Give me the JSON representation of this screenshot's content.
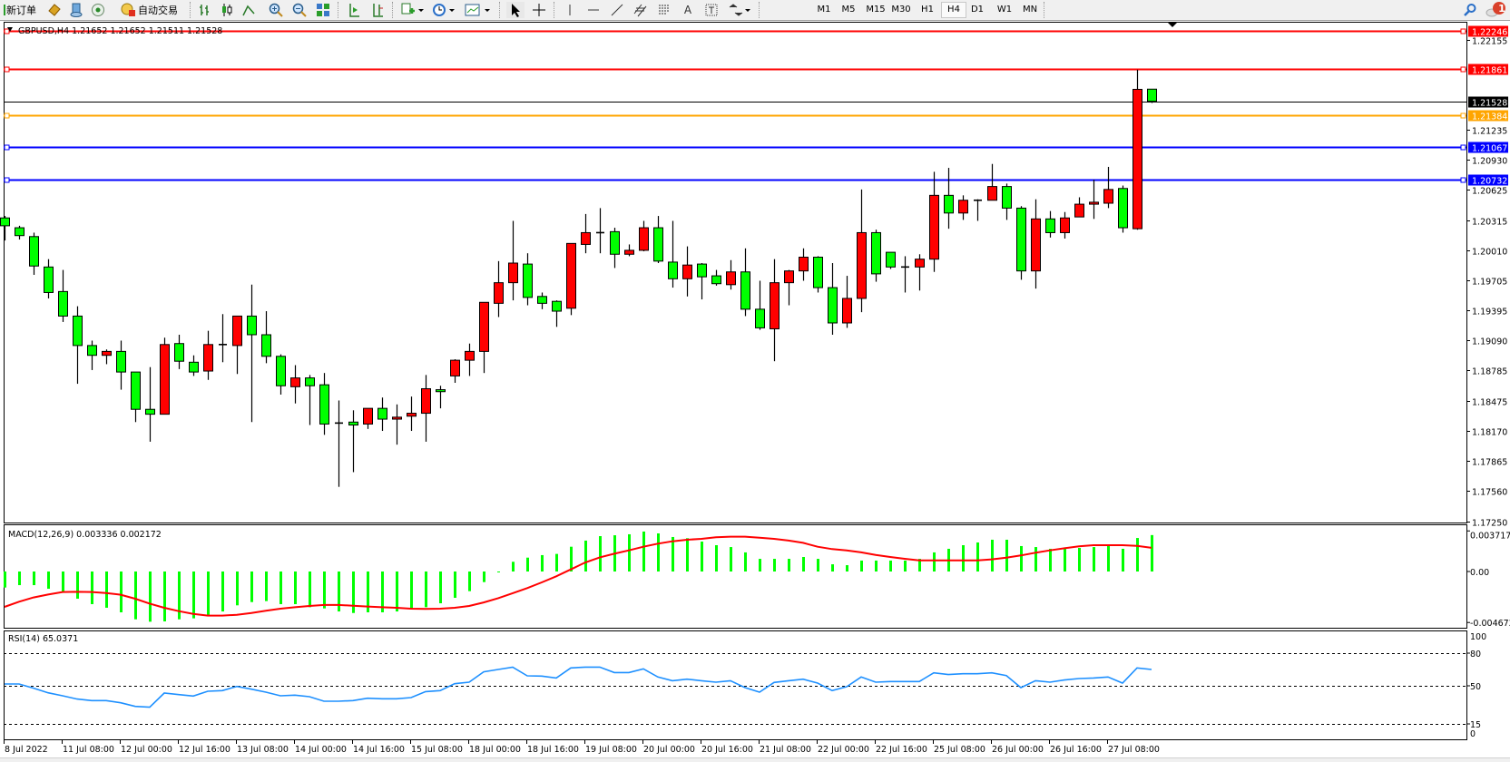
{
  "toolbar": {
    "new_order_label": "新订单",
    "auto_trading_label": "自动交易",
    "tools": [
      "gold-diamond-icon",
      "community-icon",
      "signals-icon",
      "bar-chart-icon",
      "candlestick-icon",
      "line-chart-icon",
      "zoom-in-icon",
      "zoom-out-icon",
      "tile-windows-icon",
      "auto-scroll-icon",
      "chart-shift-icon",
      "indicators-icon",
      "periods-icon",
      "templates-icon",
      "cursor-icon",
      "crosshair-icon",
      "vertical-line-icon",
      "horizontal-line-icon",
      "trendline-icon",
      "equidistant-channel-icon",
      "fibonacci-icon",
      "text-icon",
      "text-label-icon",
      "arrows-icon"
    ],
    "timeframes": [
      "M1",
      "M5",
      "M15",
      "M30",
      "H1",
      "H4",
      "D1",
      "W1",
      "MN"
    ],
    "active_timeframe": "H4",
    "notification_count": "1"
  },
  "chart": {
    "header": "GBPUSD,H4  1.21652 1.21652 1.21511 1.21528",
    "colors": {
      "bull": "#ff0000",
      "bear": "#00ff00",
      "outline": "#000000",
      "macd_hist": "#00ff00",
      "macd_signal": "#ff0000",
      "rsi": "#1e90ff"
    }
  },
  "chart_data": [
    {
      "type": "candlestick",
      "symbol": "GBPUSD",
      "timeframe": "H4",
      "ohlc_fields": [
        "open",
        "high",
        "low",
        "close"
      ],
      "candles": [
        [
          1.2034,
          1.2036,
          1.2011,
          1.2026
        ],
        [
          1.2024,
          1.2026,
          1.2012,
          1.2016
        ],
        [
          1.2015,
          1.2019,
          1.1976,
          1.1985
        ],
        [
          1.1984,
          1.1992,
          1.1952,
          1.1958
        ],
        [
          1.1959,
          1.1981,
          1.1928,
          1.1934
        ],
        [
          1.1934,
          1.1944,
          1.1865,
          1.1904
        ],
        [
          1.1904,
          1.1909,
          1.1879,
          1.1894
        ],
        [
          1.1894,
          1.19,
          1.1885,
          1.1898
        ],
        [
          1.1898,
          1.1909,
          1.1859,
          1.1877
        ],
        [
          1.1877,
          1.1877,
          1.1826,
          1.1839
        ],
        [
          1.1839,
          1.1882,
          1.1806,
          1.1834
        ],
        [
          1.1834,
          1.1912,
          1.1834,
          1.1905
        ],
        [
          1.1906,
          1.1915,
          1.188,
          1.1888
        ],
        [
          1.1887,
          1.1894,
          1.1873,
          1.1877
        ],
        [
          1.1878,
          1.1919,
          1.1869,
          1.1905
        ],
        [
          1.1905,
          1.1936,
          1.1887,
          1.1904
        ],
        [
          1.1904,
          1.1934,
          1.1875,
          1.1934
        ],
        [
          1.1934,
          1.1966,
          1.1826,
          1.1915
        ],
        [
          1.1915,
          1.1939,
          1.1886,
          1.1893
        ],
        [
          1.1893,
          1.1895,
          1.1854,
          1.1863
        ],
        [
          1.1862,
          1.1884,
          1.1845,
          1.1871
        ],
        [
          1.1871,
          1.1874,
          1.1823,
          1.1863
        ],
        [
          1.1864,
          1.1876,
          1.1813,
          1.1824
        ],
        [
          1.1824,
          1.1848,
          1.176,
          1.1825
        ],
        [
          1.1826,
          1.1838,
          1.1775,
          1.1823
        ],
        [
          1.1824,
          1.184,
          1.1819,
          1.184
        ],
        [
          1.184,
          1.1851,
          1.1817,
          1.1829
        ],
        [
          1.1829,
          1.1844,
          1.1803,
          1.1831
        ],
        [
          1.1832,
          1.1852,
          1.1817,
          1.1835
        ],
        [
          1.1835,
          1.1874,
          1.1806,
          1.186
        ],
        [
          1.1859,
          1.1863,
          1.184,
          1.1857
        ],
        [
          1.1873,
          1.189,
          1.1866,
          1.1889
        ],
        [
          1.1889,
          1.1906,
          1.1873,
          1.1898
        ],
        [
          1.1898,
          1.1948,
          1.1876,
          1.1948
        ],
        [
          1.1947,
          1.199,
          1.1933,
          1.1968
        ],
        [
          1.1968,
          1.2031,
          1.195,
          1.1988
        ],
        [
          1.1987,
          1.1998,
          1.1945,
          1.1953
        ],
        [
          1.1954,
          1.1958,
          1.1941,
          1.1947
        ],
        [
          1.1949,
          1.195,
          1.1923,
          1.1939
        ],
        [
          1.1942,
          1.2008,
          1.1935,
          1.2008
        ],
        [
          1.2007,
          1.2038,
          1.1998,
          1.2019
        ],
        [
          1.2019,
          1.2044,
          1.1998,
          1.2019
        ],
        [
          1.202,
          1.2024,
          1.1983,
          1.1997
        ],
        [
          1.1997,
          1.2007,
          1.1995,
          1.2001
        ],
        [
          1.2001,
          1.2031,
          1.2,
          1.2024
        ],
        [
          1.2024,
          1.2036,
          1.1988,
          1.199
        ],
        [
          1.1989,
          1.2031,
          1.1963,
          1.1972
        ],
        [
          1.1972,
          1.2005,
          1.1954,
          1.1986
        ],
        [
          1.1987,
          1.1988,
          1.1951,
          1.1974
        ],
        [
          1.1975,
          1.1981,
          1.1965,
          1.1967
        ],
        [
          1.1966,
          1.1991,
          1.1961,
          1.1979
        ],
        [
          1.1979,
          1.2003,
          1.1934,
          1.1941
        ],
        [
          1.1941,
          1.197,
          1.192,
          1.1922
        ],
        [
          1.1921,
          1.1992,
          1.1888,
          1.1968
        ],
        [
          1.1968,
          1.1981,
          1.1945,
          1.198
        ],
        [
          1.198,
          1.2003,
          1.197,
          1.1994
        ],
        [
          1.1994,
          1.1995,
          1.1958,
          1.1963
        ],
        [
          1.1963,
          1.1988,
          1.1915,
          1.1927
        ],
        [
          1.1927,
          1.1975,
          1.1922,
          1.1952
        ],
        [
          1.1952,
          1.2063,
          1.1938,
          1.2019
        ],
        [
          1.2019,
          1.2022,
          1.1969,
          1.1977
        ],
        [
          1.1999,
          1.1999,
          1.1982,
          1.1984
        ],
        [
          1.1984,
          1.1995,
          1.1958,
          1.1983
        ],
        [
          1.1984,
          1.1997,
          1.196,
          1.1992
        ],
        [
          1.1992,
          1.2081,
          1.1979,
          1.2057
        ],
        [
          1.2057,
          1.2085,
          1.2023,
          1.2039
        ],
        [
          1.2039,
          1.2057,
          1.2032,
          1.2052
        ],
        [
          1.2052,
          1.2053,
          1.2031,
          1.2052
        ],
        [
          1.2052,
          1.2089,
          1.2052,
          1.2066
        ],
        [
          1.2066,
          1.2069,
          1.2032,
          1.2044
        ],
        [
          1.2044,
          1.2046,
          1.1971,
          1.198
        ],
        [
          1.198,
          1.2053,
          1.1962,
          1.2033
        ],
        [
          1.2033,
          1.2041,
          1.2014,
          1.2019
        ],
        [
          1.2019,
          1.204,
          1.2013,
          1.2034
        ],
        [
          1.2035,
          1.2055,
          1.2035,
          1.2048
        ],
        [
          1.2048,
          1.2073,
          1.2033,
          1.205
        ],
        [
          1.2049,
          1.2086,
          1.2044,
          1.2063
        ],
        [
          1.2064,
          1.2067,
          1.2019,
          1.2024
        ],
        [
          1.2023,
          1.2185,
          1.2022,
          1.2165
        ],
        [
          1.21652,
          1.21652,
          1.21511,
          1.21528
        ]
      ],
      "ylim": [
        1.1725,
        1.223
      ],
      "price_ticks": [
        "1.22155",
        "1.21235",
        "1.20930",
        "1.20625",
        "1.20315",
        "1.20010",
        "1.19705",
        "1.19395",
        "1.19090",
        "1.18785",
        "1.18475",
        "1.18170",
        "1.17865",
        "1.17560",
        "1.17250"
      ],
      "horizontal_lines": [
        {
          "price": "1.22246",
          "color": "#ff0000"
        },
        {
          "price": "1.21861",
          "color": "#ff0000"
        },
        {
          "price": "1.21384",
          "color": "#ffa500"
        },
        {
          "price": "1.21067",
          "color": "#0000ff"
        },
        {
          "price": "1.20732",
          "color": "#0000ff"
        }
      ],
      "bid_line": {
        "price": "1.21528",
        "color": "#000000"
      },
      "time_labels": [
        "8 Jul 2022",
        "11 Jul 08:00",
        "12 Jul 00:00",
        "12 Jul 16:00",
        "13 Jul 08:00",
        "14 Jul 00:00",
        "14 Jul 16:00",
        "15 Jul 08:00",
        "18 Jul 00:00",
        "18 Jul 16:00",
        "19 Jul 08:00",
        "20 Jul 00:00",
        "20 Jul 16:00",
        "21 Jul 08:00",
        "22 Jul 00:00",
        "22 Jul 16:00",
        "25 Jul 08:00",
        "26 Jul 00:00",
        "26 Jul 16:00",
        "27 Jul 08:00"
      ],
      "time_label_every_n_bars": 4
    },
    {
      "type": "bar+line",
      "label": "MACD(12,26,9) 0.003336 0.002172",
      "ylim": [
        -0.004672,
        0.003717
      ],
      "axis_labels": [
        "0.003717",
        "0.00",
        "-0.004672"
      ],
      "histogram": [
        -0.00147,
        -0.00125,
        -0.00125,
        -0.00158,
        -0.00188,
        -0.00249,
        -0.00299,
        -0.00332,
        -0.00374,
        -0.00438,
        -0.0046,
        -0.00457,
        -0.00438,
        -0.00429,
        -0.00402,
        -0.00366,
        -0.0031,
        -0.0028,
        -0.00271,
        -0.00299,
        -0.00299,
        -0.00327,
        -0.00338,
        -0.00366,
        -0.0038,
        -0.00374,
        -0.00374,
        -0.00366,
        -0.00338,
        -0.00327,
        -0.00291,
        -0.00241,
        -0.0018,
        -0.00097,
        -6e-05,
        0.00089,
        0.00127,
        0.0015,
        0.00161,
        0.00227,
        0.00283,
        0.00324,
        0.00332,
        0.00341,
        0.00366,
        0.00349,
        0.00316,
        0.00305,
        0.00274,
        0.00241,
        0.00224,
        0.00175,
        0.00116,
        0.00116,
        0.00116,
        0.00133,
        0.00116,
        0.00066,
        0.00058,
        0.001,
        0.001,
        0.001,
        0.001,
        0.00116,
        0.00175,
        0.00208,
        0.00241,
        0.00266,
        0.00291,
        0.00291,
        0.00233,
        0.00224,
        0.00208,
        0.00208,
        0.00216,
        0.00224,
        0.00233,
        0.00208,
        0.00307,
        0.003336
      ],
      "signal": [
        -0.00324,
        -0.00277,
        -0.00238,
        -0.00211,
        -0.00188,
        -0.00186,
        -0.00188,
        -0.00197,
        -0.00213,
        -0.00249,
        -0.00294,
        -0.00332,
        -0.00363,
        -0.00388,
        -0.00404,
        -0.00404,
        -0.00396,
        -0.0038,
        -0.0036,
        -0.00341,
        -0.00327,
        -0.00316,
        -0.00307,
        -0.00307,
        -0.00313,
        -0.00321,
        -0.00327,
        -0.00332,
        -0.00341,
        -0.00343,
        -0.00341,
        -0.00332,
        -0.00316,
        -0.00283,
        -0.00244,
        -0.00199,
        -0.00152,
        -0.001,
        -0.00044,
        0.00019,
        0.00083,
        0.0013,
        0.00163,
        0.00194,
        0.00227,
        0.00255,
        0.00277,
        0.00291,
        0.00299,
        0.00313,
        0.00319,
        0.00319,
        0.0031,
        0.00299,
        0.00283,
        0.00263,
        0.00227,
        0.00205,
        0.00194,
        0.00175,
        0.00152,
        0.00133,
        0.00116,
        0.00102,
        0.00102,
        0.00102,
        0.00102,
        0.00102,
        0.00111,
        0.00127,
        0.00147,
        0.00172,
        0.00194,
        0.00213,
        0.0023,
        0.00241,
        0.00241,
        0.00241,
        0.00235,
        0.002172
      ]
    },
    {
      "type": "line",
      "label": "RSI(14) 65.0371",
      "ylim": [
        0,
        100
      ],
      "axis_labels": [
        "100",
        "80",
        "50",
        "15",
        "0"
      ],
      "levels": [
        80,
        50,
        15
      ],
      "values": [
        51.7,
        51.7,
        47.8,
        43.6,
        40.8,
        37.8,
        36.4,
        36.4,
        34.4,
        31.1,
        30.3,
        43.3,
        41.9,
        40.6,
        45.0,
        45.6,
        49.4,
        46.9,
        44.2,
        40.8,
        41.4,
        40.0,
        35.8,
        35.8,
        36.4,
        38.6,
        38.1,
        38.1,
        39.2,
        44.7,
        45.6,
        51.9,
        53.3,
        62.8,
        65.0,
        67.2,
        59.2,
        58.9,
        57.2,
        66.4,
        67.2,
        67.2,
        62.2,
        62.2,
        65.6,
        58.1,
        54.7,
        56.1,
        54.7,
        53.3,
        54.7,
        48.3,
        44.2,
        53.1,
        54.7,
        56.1,
        52.5,
        45.6,
        49.2,
        58.1,
        53.3,
        53.9,
        53.9,
        53.9,
        61.9,
        60.3,
        61.1,
        61.1,
        61.9,
        59.4,
        48.3,
        54.7,
        53.3,
        55.3,
        56.7,
        57.2,
        58.1,
        52.5,
        66.4,
        65.0371
      ]
    }
  ]
}
